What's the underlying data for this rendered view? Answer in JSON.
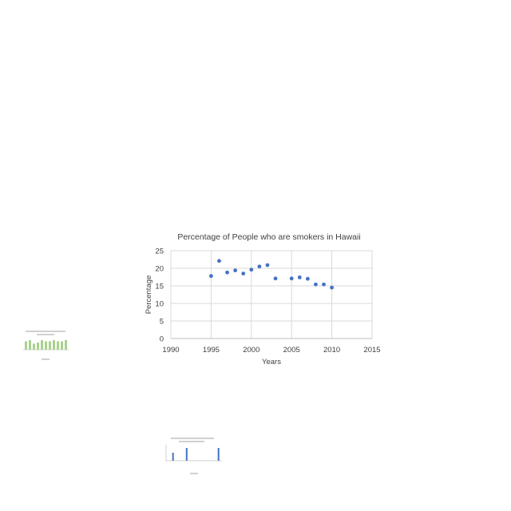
{
  "chart_data": {
    "type": "scatter",
    "title": "Percentage of People who are smokers in Hawaii",
    "xlabel": "Years",
    "ylabel": "Percentage",
    "xlim": [
      1990,
      2015
    ],
    "ylim": [
      0,
      25
    ],
    "x_ticks": [
      "1990",
      "1995",
      "2000",
      "2005",
      "2010",
      "2015"
    ],
    "y_ticks": [
      "0",
      "5",
      "10",
      "15",
      "20",
      "25"
    ],
    "grid": true,
    "marker_color": "#4472c4",
    "series": [
      {
        "x": [
          1995,
          1996,
          1997,
          1998,
          1999,
          2000,
          2001,
          2002,
          2003,
          2005,
          2006,
          2007,
          2008,
          2009,
          2010
        ],
        "y": [
          17.8,
          22.1,
          18.8,
          19.4,
          18.5,
          19.6,
          20.5,
          20.9,
          17.1,
          17.1,
          17.4,
          17.0,
          15.4,
          15.4,
          14.5
        ]
      }
    ]
  },
  "thumbnails": {
    "left_bar_chart": {
      "color": "#a9d18e",
      "values": [
        7,
        8,
        5,
        6,
        8,
        7,
        7,
        8,
        7,
        7,
        8
      ]
    },
    "bottom_bar_chart": {
      "color": "#4472c4",
      "values": [
        0,
        5,
        0,
        0,
        8,
        0,
        0,
        0,
        0,
        0,
        0,
        8
      ]
    }
  }
}
